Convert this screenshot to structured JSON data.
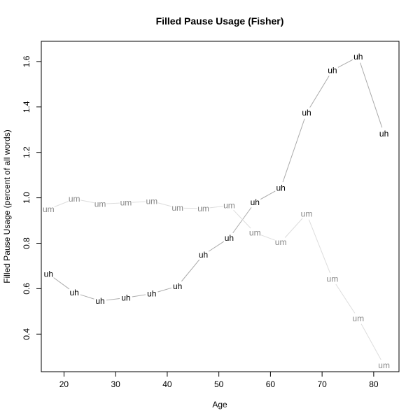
{
  "chart_data": {
    "type": "line",
    "title": "Filled Pause Usage (Fisher)",
    "xlabel": "Age",
    "ylabel": "Filled Pause Usage (percent of all words)",
    "xlim": [
      15.6,
      84.9
    ],
    "ylim": [
      0.2345,
      1.689
    ],
    "x_ticks": [
      20,
      30,
      40,
      50,
      60,
      70,
      80
    ],
    "y_ticks": [
      0.4,
      0.6,
      0.8,
      1.0,
      1.2,
      1.4,
      1.6
    ],
    "grid": false,
    "legend": "none",
    "series": [
      {
        "name": "uh",
        "point_label": "uh",
        "line_color": "#aaaaaa",
        "text_color": "#000000",
        "x": [
          17,
          22,
          27,
          32,
          37,
          42,
          47,
          52,
          57,
          62,
          67,
          72,
          77,
          82
        ],
        "y": [
          0.665,
          0.582,
          0.546,
          0.56,
          0.578,
          0.611,
          0.749,
          0.823,
          0.98,
          1.043,
          1.374,
          1.561,
          1.621,
          1.283
        ]
      },
      {
        "name": "um",
        "point_label": "um",
        "line_color": "#dddddd",
        "text_color": "#888888",
        "x": [
          17,
          22,
          27,
          32,
          37,
          42,
          47,
          52,
          57,
          62,
          67,
          72,
          77,
          82
        ],
        "y": [
          0.95,
          0.995,
          0.973,
          0.978,
          0.985,
          0.955,
          0.953,
          0.966,
          0.846,
          0.804,
          0.93,
          0.643,
          0.469,
          0.263
        ]
      }
    ]
  }
}
